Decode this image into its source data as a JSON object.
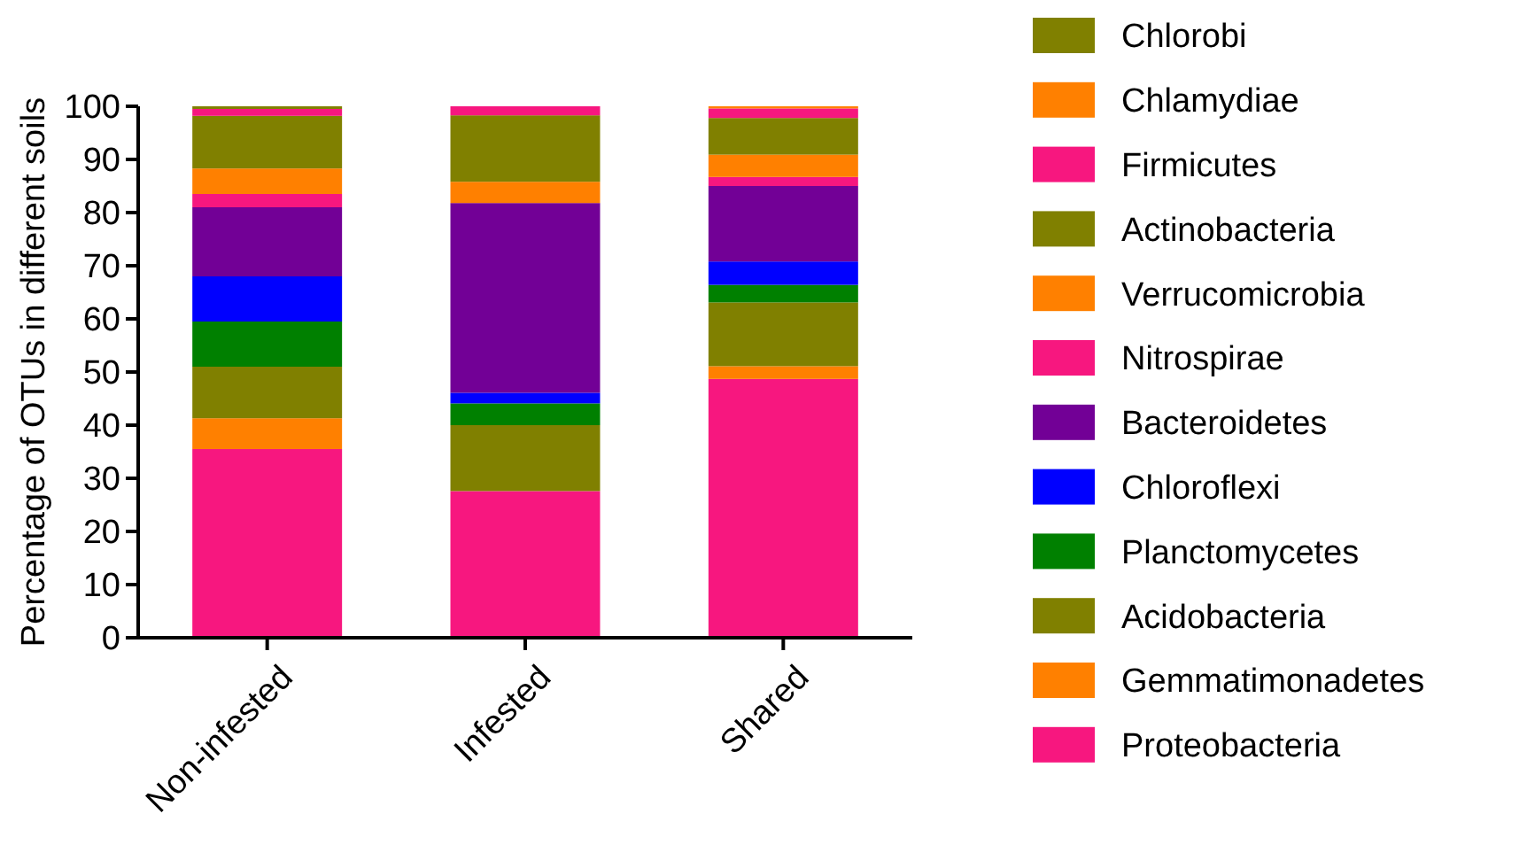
{
  "chart_data": {
    "type": "bar",
    "stacked": true,
    "ylabel": "Percentage of OTUs in different soils",
    "categories": [
      "Non-infested",
      "Infested",
      "Shared"
    ],
    "ylim": [
      0,
      100
    ],
    "yticks": [
      0,
      10,
      20,
      30,
      40,
      50,
      60,
      70,
      80,
      90,
      100
    ],
    "legend": "right",
    "grid": false,
    "series": [
      {
        "name": "Proteobacteria",
        "color": "#f7177f",
        "values": [
          35.5,
          27.6,
          48.7
        ]
      },
      {
        "name": "Gemmatimonadetes",
        "color": "#ff8000",
        "values": [
          5.8,
          0,
          2.4
        ]
      },
      {
        "name": "Acidobacteria",
        "color": "#808000",
        "values": [
          9.7,
          12.4,
          12
        ]
      },
      {
        "name": "Planctomycetes",
        "color": "#008000",
        "values": [
          8.5,
          4.1,
          3.3
        ]
      },
      {
        "name": "Chloroflexi",
        "color": "#0000ff",
        "values": [
          8.5,
          2,
          4.4
        ]
      },
      {
        "name": "Bacteroidetes",
        "color": "#720096",
        "values": [
          13,
          35.7,
          14.2
        ]
      },
      {
        "name": "Nitrospirae",
        "color": "#f7177f",
        "values": [
          2.5,
          0,
          1.7
        ]
      },
      {
        "name": "Verrucomicrobia",
        "color": "#ff8000",
        "values": [
          4.8,
          4,
          4.2
        ]
      },
      {
        "name": "Actinobacteria",
        "color": "#808000",
        "values": [
          9.9,
          12.5,
          6.9
        ]
      },
      {
        "name": "Firmicutes",
        "color": "#f7177f",
        "values": [
          1.3,
          1.7,
          1.8
        ]
      },
      {
        "name": "Chlamydiae",
        "color": "#ff8000",
        "values": [
          0,
          0,
          0.4
        ]
      },
      {
        "name": "Chlorobi",
        "color": "#808000",
        "values": [
          0.5,
          0,
          0
        ]
      }
    ]
  }
}
